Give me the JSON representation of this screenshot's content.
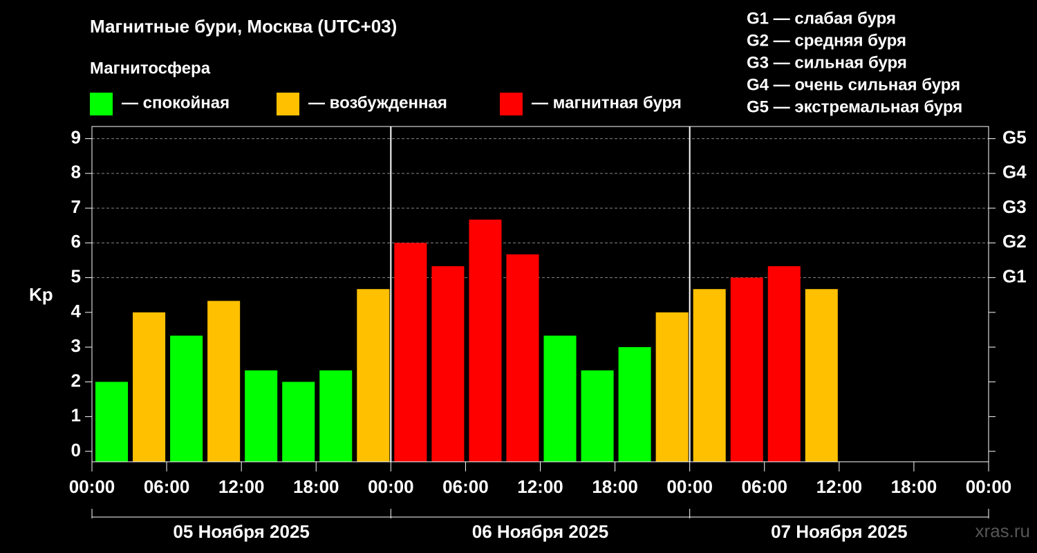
{
  "chart_data": {
    "type": "bar",
    "title": "Магнитные бури, Москва (UTC+03)",
    "legend_title": "Магнитосфера",
    "series_legend": [
      {
        "name": "— спокойная",
        "color": "#00ff00"
      },
      {
        "name": "— возбужденная",
        "color": "#ffc000"
      },
      {
        "name": "— магнитная буря",
        "color": "#ff0000"
      }
    ],
    "g_scale": [
      "G1 — слабая буря",
      "G2 — средняя буря",
      "G3 — сильная буря",
      "G4 — очень сильная буря",
      "G5 — экстремальная буря"
    ],
    "y_label": "Kp",
    "x": [
      0,
      3,
      6,
      9,
      12,
      15,
      18,
      21,
      24,
      27,
      30,
      33,
      36,
      39,
      42,
      45,
      48,
      51,
      54,
      57
    ],
    "values": [
      2.0,
      4.0,
      3.33,
      4.33,
      2.33,
      2.0,
      2.33,
      4.67,
      6.0,
      5.33,
      6.67,
      5.67,
      3.33,
      2.33,
      3.0,
      4.0,
      4.67,
      5.0,
      5.33,
      4.67
    ],
    "colors": [
      "#00ff00",
      "#ffc000",
      "#00ff00",
      "#ffc000",
      "#00ff00",
      "#00ff00",
      "#00ff00",
      "#ffc000",
      "#ff0000",
      "#ff0000",
      "#ff0000",
      "#ff0000",
      "#00ff00",
      "#00ff00",
      "#00ff00",
      "#ffc000",
      "#ffc000",
      "#ff0000",
      "#ff0000",
      "#ffc000"
    ],
    "xlim": [
      0,
      72
    ],
    "xticks": [
      {
        "value": 0,
        "label": "00:00"
      },
      {
        "value": 6,
        "label": "06:00"
      },
      {
        "value": 12,
        "label": "12:00"
      },
      {
        "value": 18,
        "label": "18:00"
      },
      {
        "value": 24,
        "label": "00:00"
      },
      {
        "value": 30,
        "label": "06:00"
      },
      {
        "value": 36,
        "label": "12:00"
      },
      {
        "value": 42,
        "label": "18:00"
      },
      {
        "value": 48,
        "label": "00:00"
      },
      {
        "value": 54,
        "label": "06:00"
      },
      {
        "value": 60,
        "label": "12:00"
      },
      {
        "value": 66,
        "label": "18:00"
      },
      {
        "value": 72,
        "label": "00:00"
      }
    ],
    "ylim": [
      -0.3,
      9.35
    ],
    "yticks": [
      0,
      1,
      2,
      3,
      4,
      5,
      6,
      7,
      8,
      9
    ],
    "y2lim": [
      -0.3,
      9.35
    ],
    "y2ticks": [
      {
        "value": 5,
        "label": "G1"
      },
      {
        "value": 6,
        "label": "G2"
      },
      {
        "value": 7,
        "label": "G3"
      },
      {
        "value": 8,
        "label": "G4"
      },
      {
        "value": 9,
        "label": "G5"
      }
    ],
    "date_labels": [
      "05 Ноября 2025",
      "06 Ноября 2025",
      "07 Ноября 2025"
    ],
    "watermark": "xras.ru"
  }
}
